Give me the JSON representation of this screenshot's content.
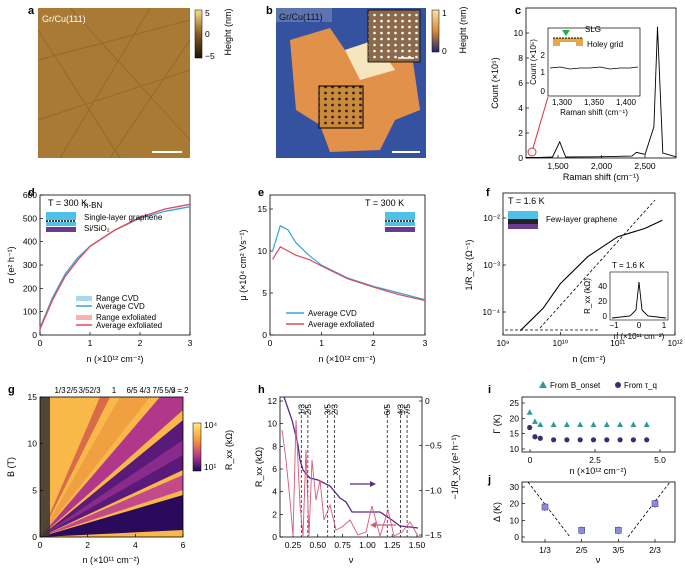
{
  "panels": {
    "a": {
      "letter": "a",
      "sample": "Gr/Cu(111)",
      "cbar_ticks": [
        "5",
        "0",
        "−5"
      ],
      "cbar_label": "Height (nm)"
    },
    "b": {
      "letter": "b",
      "sample": "Gr/Cu(111)",
      "cbar_ticks": [
        "1",
        "0"
      ],
      "cbar_label": "Height (nm)"
    },
    "c": {
      "letter": "c",
      "xlabel": "Raman shift (cm⁻¹)",
      "ylabel": "Count (×10⁵)",
      "xticks": [
        "1,500",
        "2,000",
        "2,500"
      ],
      "yticks": [
        "0",
        "2",
        "4",
        "6",
        "8",
        "10"
      ],
      "inset": {
        "ylabel": "Count (×10⁵)",
        "xlabel": "Raman shift (cm⁻¹)",
        "xticks": [
          "1,300",
          "1,350",
          "1,400"
        ],
        "yticks": [
          "0",
          "1",
          "2"
        ],
        "slg": "SLG",
        "holey": "Holey grid"
      }
    },
    "d": {
      "letter": "d",
      "temp": "T = 300 K",
      "ylabel": "σ (e² h⁻¹)",
      "xlabel": "n (×10¹² cm⁻²)",
      "xticks": [
        "0",
        "1",
        "2",
        "3"
      ],
      "yticks": [
        "0",
        "100",
        "200",
        "300",
        "400",
        "500",
        "600"
      ],
      "layers": [
        "h-BN",
        "Single-layer graphene",
        "Si/SiO₂"
      ],
      "legend": [
        "Range CVD",
        "Average CVD",
        "Range exfoliated",
        "Average exfoliated"
      ]
    },
    "e": {
      "letter": "e",
      "temp": "T = 300 K",
      "ylabel": "μ (×10⁴ cm² Vs⁻¹)",
      "xlabel": "n (×10¹² cm⁻²)",
      "xticks": [
        "0",
        "1",
        "2",
        "3"
      ],
      "yticks": [
        "0",
        "5",
        "10",
        "15"
      ],
      "legend": [
        "Average CVD",
        "Average exfoliated"
      ]
    },
    "f": {
      "letter": "f",
      "temp": "T = 1.6 K",
      "ylabel": "1/R_xx (Ω⁻¹)",
      "xlabel": "n (cm⁻²)",
      "xticks": [
        "10⁹",
        "10¹⁰",
        "10¹¹",
        "10¹²"
      ],
      "yticks": [
        "10⁻⁴",
        "10⁻³",
        "10⁻²"
      ],
      "layer": "Few-layer graphene",
      "inset": {
        "temp": "T = 1.6 K",
        "ylabel": "R_xx (kΩ)",
        "xlabel": "n (×10¹¹ cm⁻²)",
        "xticks": [
          "−1",
          "0",
          "1"
        ],
        "yticks": [
          "0",
          "20",
          "40"
        ]
      }
    },
    "g": {
      "letter": "g",
      "ylabel": "B (T)",
      "xlabel": "n (×10¹¹ cm⁻²)",
      "xticks": [
        "0",
        "2",
        "4",
        "6"
      ],
      "yticks": [
        "0",
        "5",
        "10",
        "15"
      ],
      "fractions": [
        "1/3",
        "2/5",
        "3/5",
        "2/3",
        "1",
        "6/5",
        "4/3",
        "7/5",
        "5/3"
      ],
      "nu": "ν = 2",
      "cbar_ticks": [
        "10⁴",
        "10¹"
      ],
      "cbar_label": "R_xx (kΩ)"
    },
    "h": {
      "letter": "h",
      "ylabel_left": "R_xx (kΩ)",
      "ylabel_right": "−1/R_xy (e² h⁻¹)",
      "xlabel": "ν",
      "xticks": [
        "0.25",
        "0.50",
        "0.75",
        "1.00",
        "1.25",
        "1.50"
      ],
      "yticks_left": [
        "0",
        "2",
        "4",
        "6",
        "8",
        "10",
        "12"
      ],
      "yticks_right": [
        "0",
        "−0.5",
        "−1.0",
        "−1.5"
      ],
      "fractions": [
        "1/3",
        "2/5",
        "3/5",
        "2/3",
        "6/5",
        "4/3",
        "7/5"
      ]
    },
    "i": {
      "letter": "i",
      "ylabel": "Γ (K)",
      "xlabel": "n (×10¹² cm⁻²)",
      "xticks": [
        "0",
        "2.5",
        "5.0"
      ],
      "yticks": [
        "10",
        "15",
        "20",
        "25"
      ],
      "legend": [
        "From B_onset",
        "From τ_q"
      ]
    },
    "j": {
      "letter": "j",
      "ylabel": "Δ (K)",
      "xlabel": "ν",
      "xticks": [
        "1/3",
        "2/5",
        "3/5",
        "2/3"
      ],
      "yticks": [
        "0",
        "10",
        "20",
        "30"
      ]
    }
  },
  "colors": {
    "cvd": "#3aa3d8",
    "exf": "#e0485a",
    "purple": "#5b2a86",
    "teal": "#2f9a9a",
    "navy": "#3b2d73"
  },
  "chart_data": [
    {
      "panel": "c",
      "type": "line",
      "x": [
        1200,
        1350,
        1500,
        1582,
        1650,
        2000,
        2400,
        2450,
        2550,
        2650,
        2690,
        2750,
        2900
      ],
      "y": [
        0.05,
        0.05,
        0.08,
        1.3,
        0.08,
        0.1,
        0.15,
        0.45,
        0.3,
        2.5,
        10.5,
        0.4,
        0.1
      ],
      "xlim": [
        1200,
        2900
      ],
      "ylim": [
        0,
        12
      ]
    },
    {
      "panel": "d",
      "type": "line",
      "x": [
        0,
        0.25,
        0.5,
        0.75,
        1,
        1.5,
        2,
        2.5,
        3
      ],
      "series": [
        {
          "name": "Average CVD",
          "values": [
            30,
            160,
            260,
            330,
            380,
            450,
            500,
            530,
            550
          ]
        },
        {
          "name": "Average exfoliated",
          "values": [
            25,
            150,
            250,
            320,
            380,
            450,
            505,
            540,
            560
          ]
        }
      ],
      "ylim": [
        0,
        600
      ]
    },
    {
      "panel": "e",
      "type": "line",
      "x": [
        0.05,
        0.2,
        0.35,
        0.5,
        0.75,
        1,
        1.5,
        2,
        2.5,
        3
      ],
      "series": [
        {
          "name": "Average CVD",
          "values": [
            10,
            13,
            12.5,
            11,
            9.5,
            8.3,
            6.8,
            5.8,
            5,
            4.2
          ]
        },
        {
          "name": "Average exfoliated",
          "values": [
            9,
            10.5,
            10,
            9.5,
            9,
            8.2,
            6.7,
            5.7,
            4.8,
            4.1
          ]
        }
      ],
      "ylim": [
        0,
        15
      ]
    },
    {
      "panel": "f",
      "type": "line",
      "x": [
        2000000000.0,
        5000000000.0,
        10000000000.0,
        30000000000.0,
        100000000000.0,
        300000000000.0,
        600000000000.0
      ],
      "y": [
        4e-05,
        0.00012,
        0.0004,
        0.0015,
        0.004,
        0.006,
        0.009
      ]
    },
    {
      "panel": "i",
      "type": "scatter",
      "x": [
        0.1,
        0.3,
        0.5,
        1,
        1.5,
        2,
        2.5,
        3,
        3.5,
        4,
        4.5
      ],
      "series": [
        {
          "name": "From B_onset",
          "values": [
            22,
            19,
            18,
            18,
            18,
            18,
            18,
            18,
            18,
            18,
            18
          ]
        },
        {
          "name": "From τ_q",
          "values": [
            17,
            14,
            13.5,
            13,
            13,
            13,
            13,
            13,
            13,
            13,
            13
          ]
        }
      ],
      "ylim": [
        10,
        25
      ]
    },
    {
      "panel": "j",
      "type": "scatter",
      "categories": [
        "1/3",
        "2/5",
        "3/5",
        "2/3"
      ],
      "values": [
        18,
        4,
        4,
        20
      ],
      "ylim": [
        0,
        30
      ]
    }
  ]
}
